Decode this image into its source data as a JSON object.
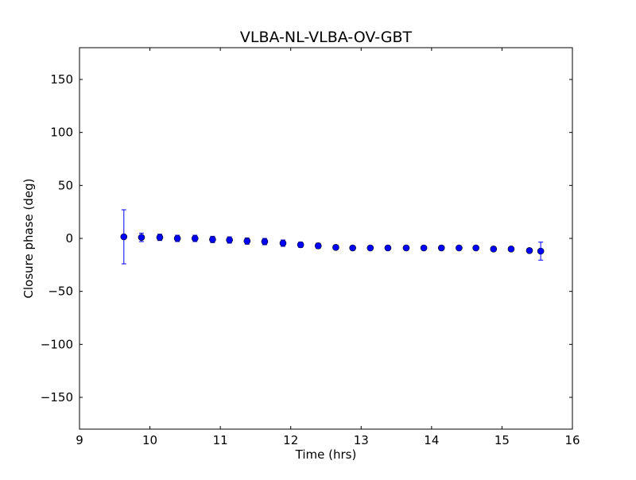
{
  "chart_data": {
    "type": "scatter",
    "title": "VLBA-NL-VLBA-OV-GBT",
    "xlabel": "Time (hrs)",
    "ylabel": "Closure phase (deg)",
    "xlim": [
      9,
      16
    ],
    "ylim": [
      -180,
      180
    ],
    "xticks": [
      9,
      10,
      11,
      12,
      13,
      14,
      15,
      16
    ],
    "xtick_labels": [
      "9",
      "10",
      "11",
      "12",
      "13",
      "14",
      "15",
      "16"
    ],
    "yticks": [
      -150,
      -100,
      -50,
      0,
      50,
      100,
      150
    ],
    "ytick_labels": [
      "−150",
      "−100",
      "−50",
      "0",
      "50",
      "100",
      "150"
    ],
    "grid": false,
    "color": "#0000ff",
    "series": [
      {
        "name": "closure phase",
        "x": [
          9.63,
          9.88,
          10.14,
          10.39,
          10.64,
          10.89,
          11.13,
          11.38,
          11.63,
          11.89,
          12.14,
          12.39,
          12.64,
          12.88,
          13.13,
          13.38,
          13.64,
          13.89,
          14.14,
          14.39,
          14.63,
          14.88,
          15.13,
          15.39,
          15.55
        ],
        "y": [
          1.5,
          1,
          1,
          0,
          0,
          -1,
          -1.5,
          -2.5,
          -3,
          -4.5,
          -6,
          -7,
          -8.5,
          -9,
          -9,
          -9,
          -9,
          -9,
          -9,
          -9,
          -9,
          -10,
          -10,
          -11.5,
          -12
        ],
        "yerr": [
          25.5,
          4,
          3,
          3,
          3,
          3,
          3,
          3,
          3,
          3,
          2.5,
          2.5,
          2,
          2,
          2,
          2,
          2,
          2,
          2,
          2,
          2,
          2,
          2,
          2,
          8.5
        ]
      }
    ]
  }
}
